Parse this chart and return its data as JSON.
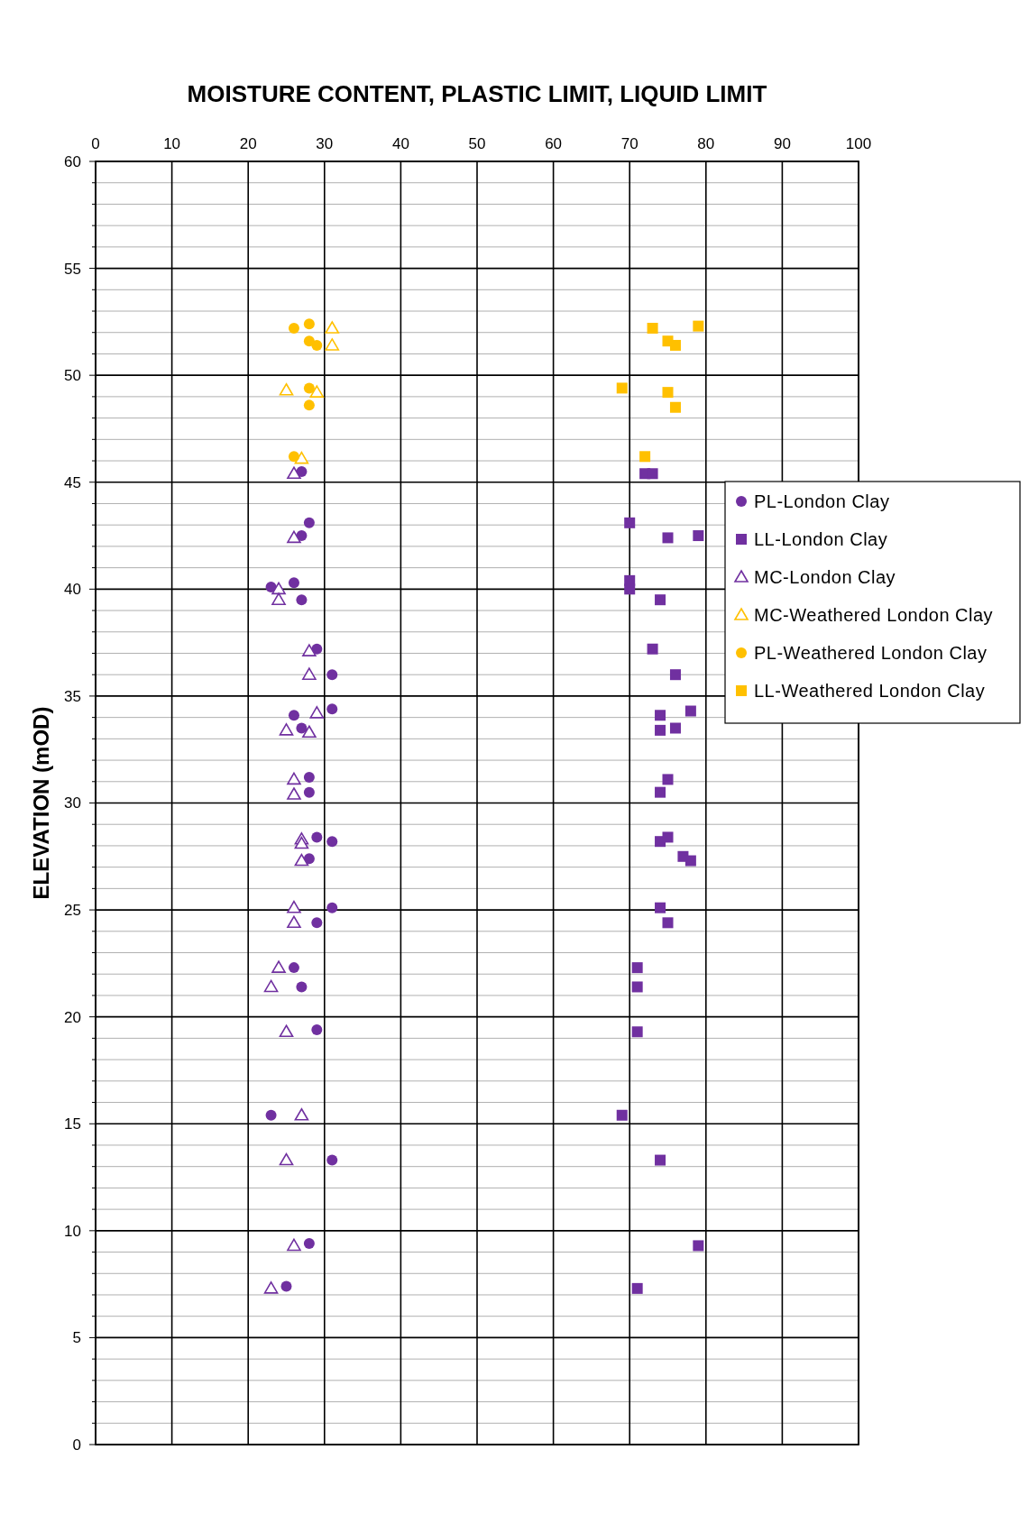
{
  "chart_data": {
    "type": "scatter",
    "title": "MOISTURE CONTENT, PLASTIC LIMIT, LIQUID LIMIT",
    "ylabel": "ELEVATION (mOD)",
    "xlim": [
      0,
      100
    ],
    "xticks": [
      0,
      10,
      20,
      30,
      40,
      50,
      60,
      70,
      80,
      90,
      100
    ],
    "ylim": [
      0,
      60
    ],
    "yticks": [
      0,
      {
        "value": 1,
        "label": null
      },
      {
        "value": 2,
        "label": null
      },
      {
        "value": 3,
        "label": null
      },
      {
        "value": 4,
        "label": null
      },
      5,
      {
        "value": 6,
        "label": null
      },
      {
        "value": 7,
        "label": null
      },
      {
        "value": 8,
        "label": null
      },
      {
        "value": 9,
        "label": null
      },
      10,
      {
        "value": 11,
        "label": null
      },
      {
        "value": 12,
        "label": null
      },
      {
        "value": 13,
        "label": null
      },
      {
        "value": 14,
        "label": null
      },
      15,
      {
        "value": 16,
        "label": null
      },
      {
        "value": 17,
        "label": null
      },
      {
        "value": 18,
        "label": null
      },
      {
        "value": 19,
        "label": null
      },
      20,
      {
        "value": 21,
        "label": null
      },
      {
        "value": 22,
        "label": null
      },
      {
        "value": 23,
        "label": null
      },
      {
        "value": 24,
        "label": null
      },
      25,
      {
        "value": 26,
        "label": null
      },
      {
        "value": 27,
        "label": null
      },
      {
        "value": 28,
        "label": null
      },
      {
        "value": 29,
        "label": null
      },
      30,
      {
        "value": 31,
        "label": null
      },
      {
        "value": 32,
        "label": null
      },
      {
        "value": 33,
        "label": null
      },
      {
        "value": 34,
        "label": null
      },
      35,
      {
        "value": 36,
        "label": null
      },
      {
        "value": 37,
        "label": null
      },
      {
        "value": 38,
        "label": null
      },
      {
        "value": 39,
        "label": null
      },
      40,
      {
        "value": 41,
        "label": null
      },
      {
        "value": 42,
        "label": null
      },
      {
        "value": 43,
        "label": null
      },
      {
        "value": 44,
        "label": null
      },
      45,
      {
        "value": 46,
        "label": null
      },
      {
        "value": 47,
        "label": null
      },
      {
        "value": 48,
        "label": null
      },
      {
        "value": 49,
        "label": null
      },
      50,
      {
        "value": 51,
        "label": null
      },
      {
        "value": 52,
        "label": null
      },
      {
        "value": 53,
        "label": null
      },
      {
        "value": 54,
        "label": null
      },
      55,
      {
        "value": 56,
        "label": null
      },
      {
        "value": 57,
        "label": null
      },
      {
        "value": 58,
        "label": null
      },
      {
        "value": 59,
        "label": null
      },
      60
    ],
    "grid": true,
    "legend": "right",
    "series": [
      {
        "name": "PL-London Clay",
        "color": "#7030a0",
        "marker": "circle",
        "x": [
          27,
          28,
          27,
          23,
          26,
          27,
          29,
          31,
          31,
          26,
          27,
          28,
          28,
          29,
          31,
          28,
          31,
          29,
          26,
          27,
          29,
          23,
          31,
          28,
          25
        ],
        "values": [
          45.5,
          43.1,
          42.5,
          40.1,
          40.3,
          39.5,
          37.2,
          36.0,
          34.4,
          34.1,
          33.5,
          31.2,
          30.5,
          28.4,
          28.2,
          27.4,
          25.1,
          24.4,
          22.3,
          21.4,
          19.4,
          15.4,
          13.3,
          9.4,
          7.4
        ]
      },
      {
        "name": "LL-London Clay",
        "color": "#7030a0",
        "marker": "square",
        "x": [
          72,
          73,
          70,
          75,
          79,
          70,
          70,
          74,
          73,
          76,
          74,
          78,
          74,
          76,
          75,
          74,
          74,
          75,
          77,
          78,
          74,
          75,
          71,
          71,
          71,
          69,
          74,
          79,
          71
        ],
        "values": [
          45.4,
          45.4,
          43.1,
          42.4,
          42.5,
          40.4,
          40.0,
          39.5,
          37.2,
          36.0,
          34.1,
          34.3,
          33.4,
          33.5,
          31.1,
          30.5,
          28.2,
          28.4,
          27.5,
          27.3,
          25.1,
          24.4,
          22.3,
          21.4,
          19.3,
          15.4,
          13.3,
          9.3,
          7.3
        ]
      },
      {
        "name": "MC-London Clay",
        "color": "#7030a0",
        "marker": "triangle",
        "x": [
          26,
          26,
          24,
          24,
          28,
          28,
          29,
          25,
          28,
          26,
          26,
          27,
          27,
          27,
          26,
          26,
          24,
          23,
          25,
          27,
          25,
          26,
          23
        ],
        "values": [
          45.4,
          42.4,
          40.0,
          39.5,
          37.1,
          36.0,
          34.2,
          33.4,
          33.3,
          31.1,
          30.4,
          28.3,
          28.1,
          27.3,
          25.1,
          24.4,
          22.3,
          21.4,
          19.3,
          15.4,
          13.3,
          9.3,
          7.3
        ]
      },
      {
        "name": "MC-Weathered London Clay",
        "color": "#ffc000",
        "marker": "triangle",
        "x": [
          31,
          31,
          25,
          29,
          27
        ],
        "values": [
          52.2,
          51.4,
          49.3,
          49.2,
          46.1
        ]
      },
      {
        "name": "PL-Weathered London Clay",
        "color": "#ffc000",
        "marker": "circle",
        "x": [
          26,
          28,
          28,
          29,
          28,
          28,
          26
        ],
        "values": [
          52.2,
          52.4,
          51.6,
          51.4,
          49.4,
          48.6,
          46.2
        ]
      },
      {
        "name": "LL-Weathered London Clay",
        "color": "#ffc000",
        "marker": "square",
        "x": [
          73,
          79,
          75,
          76,
          69,
          75,
          76,
          72
        ],
        "values": [
          52.2,
          52.3,
          51.6,
          51.4,
          49.4,
          49.2,
          48.5,
          46.2
        ]
      }
    ]
  }
}
